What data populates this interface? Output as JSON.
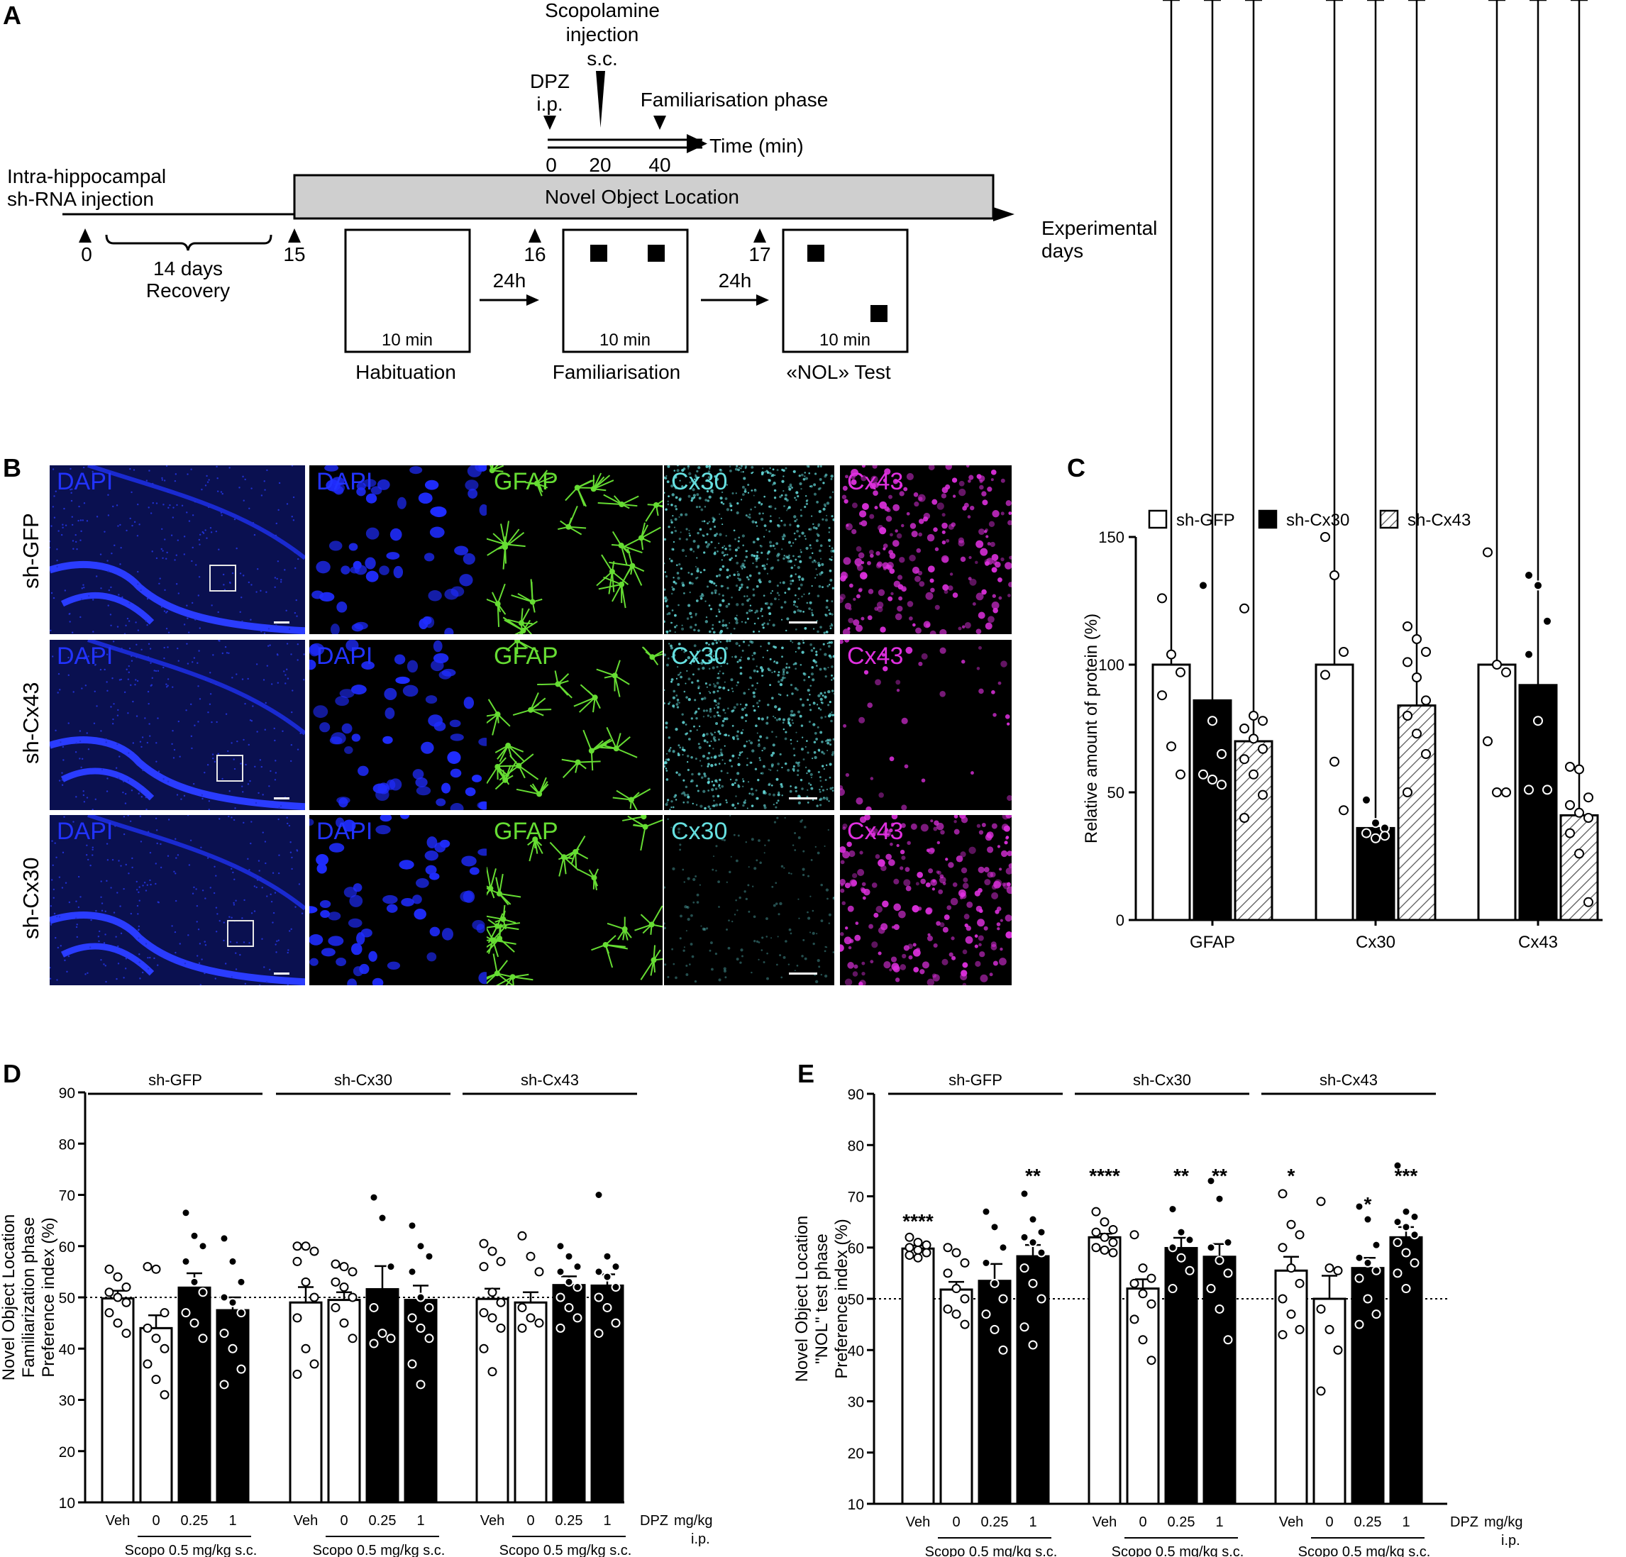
{
  "panel_letters": [
    "A",
    "B",
    "C",
    "D",
    "E"
  ],
  "panel_a": {
    "scopolamine_label": [
      "Scopolamine",
      "injection",
      "s.c."
    ],
    "dpz_label": [
      "DPZ",
      "i.p."
    ],
    "familiarisation_phase_label": "Familiarisation phase",
    "time_label": "Time (min)",
    "time_ticks": [
      "0",
      "20",
      "40"
    ],
    "injection_label": [
      "Intra-hippocampal",
      "sh-RNA injection"
    ],
    "nol_bar_label": "Novel Object Location",
    "experimental_days_label": [
      "Experimental",
      "days"
    ],
    "day_ticks": [
      "0",
      "15",
      "16",
      "17"
    ],
    "recovery_label": [
      "14 days",
      "Recovery"
    ],
    "interval_labels": [
      "24h",
      "24h"
    ],
    "box_duration": "10 min",
    "phase_labels": [
      "Habituation",
      "Familiarisation",
      "«NOL» Test"
    ]
  },
  "panel_b": {
    "row_labels": [
      "sh-GFP",
      "sh-Cx43",
      "sh-Cx30"
    ],
    "column_labels": [
      "DAPI",
      "DAPI",
      "GFAP",
      "Cx30",
      "Cx43"
    ],
    "channel_colors": {
      "DAPI": "#2233ff",
      "GFAP": "#66dd33",
      "Cx30": "#66e0e0",
      "Cx43": "#e030e0"
    }
  },
  "chart_data": [
    {
      "panel": "C",
      "type": "bar",
      "categories": [
        "GFAP",
        "Cx30",
        "Cx43"
      ],
      "ylabel": "Relative amount of protein (%)",
      "ylim": [
        0,
        150
      ],
      "yticks": [
        0,
        50,
        100,
        150
      ],
      "legend": {
        "placement": "top",
        "entries": [
          "sh-GFP",
          "sh-Cx30",
          "sh-Cx43"
        ]
      },
      "series": [
        {
          "name": "sh-GFP",
          "fill": "white",
          "values": [
            100,
            100,
            100
          ],
          "sem": [
            16,
            13,
            15
          ],
          "points": [
            [
              126,
              104,
              97,
              88,
              68,
              57
            ],
            [
              150,
              135,
              105,
              96,
              62,
              43
            ],
            [
              144,
              100,
              97,
              70,
              50,
              50
            ]
          ],
          "annotations": [
            "",
            "",
            ""
          ]
        },
        {
          "name": "sh-Cx30",
          "fill": "black",
          "values": [
            86,
            36,
            92
          ],
          "sem": [
            18,
            3,
            14
          ],
          "points": [
            [
              131,
              78,
              65,
              57,
              55,
              53
            ],
            [
              47,
              38,
              36,
              34,
              32,
              33
            ],
            [
              135,
              131,
              117,
              104,
              78,
              51,
              51
            ]
          ],
          "annotations": [
            "",
            "***",
            ""
          ]
        },
        {
          "name": "sh-Cx43",
          "fill": "hatched",
          "values": [
            70,
            84,
            41
          ],
          "sem": [
            7,
            7,
            5
          ],
          "points": [
            [
              122,
              80,
              78,
              75,
              71,
              67,
              63,
              57,
              49,
              40
            ],
            [
              115,
              110,
              105,
              101,
              95,
              86,
              80,
              73,
              65,
              50
            ],
            [
              60,
              59,
              48,
              45,
              42,
              40,
              34,
              26,
              7
            ]
          ],
          "annotations": [
            "",
            "",
            "***"
          ]
        }
      ]
    },
    {
      "panel": "D",
      "type": "bar",
      "ylabel": [
        "Novel Object Location",
        "Familiarization phase",
        "Preference index (%)"
      ],
      "ylim": [
        10,
        90
      ],
      "yticks": [
        10,
        20,
        30,
        40,
        50,
        60,
        70,
        80,
        90
      ],
      "reference_line": 50,
      "groups": [
        {
          "name": "sh-GFP",
          "bars": [
            {
              "label": "Veh",
              "fill": "white",
              "value": 49.8,
              "sem": 1.5,
              "points": [
                55.5,
                54,
                52,
                51,
                50,
                49,
                47,
                45,
                43
              ],
              "annotation": ""
            },
            {
              "label": "0",
              "fill": "white",
              "value": 44.0,
              "sem": 2.5,
              "points": [
                56,
                55.5,
                47,
                44,
                42,
                40,
                37,
                34,
                31
              ],
              "annotation": ""
            },
            {
              "label": "0.25",
              "fill": "black",
              "value": 51.9,
              "sem": 2.8,
              "points": [
                66.5,
                62,
                60,
                57,
                53,
                51,
                47,
                45,
                42
              ],
              "annotation": ""
            },
            {
              "label": "1",
              "fill": "black",
              "value": 47.5,
              "sem": 2.5,
              "points": [
                61.5,
                57,
                53,
                50,
                49,
                47,
                43,
                40,
                36,
                33
              ],
              "annotation": ""
            }
          ]
        },
        {
          "name": "sh-Cx30",
          "bars": [
            {
              "label": "Veh",
              "fill": "white",
              "value": 49.0,
              "sem": 3.0,
              "points": [
                60,
                60,
                59,
                57,
                53,
                50,
                46,
                40,
                37,
                35
              ],
              "annotation": ""
            },
            {
              "label": "0",
              "fill": "white",
              "value": 49.5,
              "sem": 1.5,
              "points": [
                56.5,
                56,
                55,
                53,
                52,
                50,
                48,
                45,
                42
              ],
              "annotation": ""
            },
            {
              "label": "0.25",
              "fill": "black",
              "value": 51.6,
              "sem": 4.5,
              "points": [
                69.5,
                65.5,
                56,
                48,
                43,
                42,
                41
              ],
              "annotation": ""
            },
            {
              "label": "1",
              "fill": "black",
              "value": 49.5,
              "sem": 2.8,
              "points": [
                64,
                60,
                58,
                55,
                50,
                48,
                46,
                44,
                42,
                37,
                33
              ],
              "annotation": ""
            }
          ]
        },
        {
          "name": "sh-Cx43",
          "bars": [
            {
              "label": "Veh",
              "fill": "white",
              "value": 49.7,
              "sem": 2.0,
              "points": [
                60.5,
                59,
                57,
                56,
                51,
                49,
                47,
                46,
                44,
                40,
                35.5
              ],
              "annotation": ""
            },
            {
              "label": "0",
              "fill": "white",
              "value": 49.0,
              "sem": 2.0,
              "points": [
                62,
                58,
                55,
                48,
                46,
                45,
                44
              ],
              "annotation": ""
            },
            {
              "label": "0.25",
              "fill": "black",
              "value": 52.4,
              "sem": 1.7,
              "points": [
                60,
                58,
                56,
                55,
                53,
                52,
                50,
                48,
                46,
                44
              ],
              "annotation": ""
            },
            {
              "label": "1",
              "fill": "black",
              "value": 52.3,
              "sem": 2.2,
              "points": [
                70,
                58,
                56,
                55,
                54,
                52,
                50,
                48,
                45,
                43
              ],
              "annotation": ""
            }
          ]
        }
      ],
      "dpz_axis_label": [
        "DPZ",
        "mg/kg",
        "i.p."
      ],
      "scopo_label": "Scopo 0.5 mg/kg s.c."
    },
    {
      "panel": "E",
      "type": "bar",
      "ylabel": [
        "Novel Object Location",
        "\"NOL\" test phase",
        "Preference index (%)"
      ],
      "ylim": [
        10,
        90
      ],
      "yticks": [
        10,
        20,
        30,
        40,
        50,
        60,
        70,
        80,
        90
      ],
      "reference_line": 50,
      "groups": [
        {
          "name": "sh-GFP",
          "bars": [
            {
              "label": "Veh",
              "fill": "white",
              "value": 59.8,
              "sem": 0.6,
              "points": [
                62,
                61,
                60.5,
                60,
                59.5,
                59,
                58.5,
                58
              ],
              "annotation": "****"
            },
            {
              "label": "0",
              "fill": "white",
              "value": 51.8,
              "sem": 1.5,
              "points": [
                60,
                59,
                57,
                55,
                52,
                50,
                48,
                47,
                45
              ],
              "annotation": ""
            },
            {
              "label": "0.25",
              "fill": "black",
              "value": 53.5,
              "sem": 3.3,
              "points": [
                67,
                64,
                60,
                57,
                53,
                50,
                47,
                44,
                40
              ],
              "annotation": ""
            },
            {
              "label": "1",
              "fill": "black",
              "value": 58.3,
              "sem": 2.2,
              "points": [
                70.5,
                65.5,
                63,
                62,
                61,
                59,
                56,
                53,
                50,
                44.5,
                41
              ],
              "annotation": "**"
            }
          ]
        },
        {
          "name": "sh-Cx30",
          "bars": [
            {
              "label": "Veh",
              "fill": "white",
              "value": 62.0,
              "sem": 0.7,
              "points": [
                67,
                65,
                63.5,
                63,
                62,
                61,
                60,
                59.5,
                59
              ],
              "annotation": "****"
            },
            {
              "label": "0",
              "fill": "white",
              "value": 52.0,
              "sem": 1.8,
              "points": [
                62.5,
                56,
                54,
                53,
                51,
                49,
                46,
                42,
                38
              ],
              "annotation": ""
            },
            {
              "label": "0.25",
              "fill": "black",
              "value": 59.9,
              "sem": 2.0,
              "points": [
                67.5,
                63,
                61.5,
                60,
                58,
                55.5,
                52
              ],
              "annotation": "**"
            },
            {
              "label": "1",
              "fill": "black",
              "value": 58.2,
              "sem": 2.5,
              "points": [
                73,
                69.5,
                61,
                60,
                57.5,
                55,
                52,
                48,
                42
              ],
              "annotation": "**"
            }
          ]
        },
        {
          "name": "sh-Cx43",
          "bars": [
            {
              "label": "Veh",
              "fill": "white",
              "value": 55.5,
              "sem": 2.7,
              "points": [
                70.5,
                64.5,
                62.5,
                60,
                56,
                53,
                50,
                47,
                44,
                43
              ],
              "annotation": "*"
            },
            {
              "label": "0",
              "fill": "white",
              "value": 50.0,
              "sem": 4.5,
              "points": [
                69,
                56,
                55.5,
                48,
                44,
                40,
                32
              ],
              "annotation": ""
            },
            {
              "label": "0.25",
              "fill": "black",
              "value": 56.0,
              "sem": 2.0,
              "points": [
                68,
                65.5,
                60.5,
                58,
                57,
                55.5,
                54,
                50,
                47,
                45
              ],
              "annotation": "*"
            },
            {
              "label": "1",
              "fill": "black",
              "value": 62.0,
              "sem": 2.0,
              "points": [
                76,
                67,
                66,
                65,
                64,
                62.5,
                61,
                59,
                57,
                55,
                52
              ],
              "annotation": "***"
            }
          ]
        }
      ],
      "dpz_axis_label": [
        "DPZ",
        "mg/kg",
        "i.p."
      ],
      "scopo_label": "Scopo 0.5 mg/kg s.c."
    }
  ]
}
